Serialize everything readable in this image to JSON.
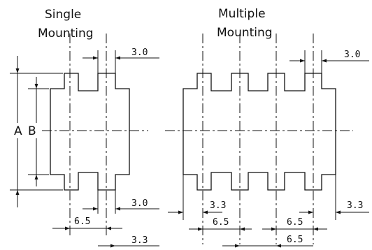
{
  "single": {
    "title_line1": "Single",
    "title_line2": "Mounting",
    "label_a": "A",
    "label_b": "B",
    "dim_top_gap": "3.0",
    "dim_bottom_gap": "3.0",
    "dim_pitch": "6.5",
    "dim_offset": "3.3"
  },
  "multiple": {
    "title_line1": "Multiple",
    "title_line2": "Mounting",
    "dim_top_gap": "3.0",
    "dim_offset_left": "3.3",
    "dim_offset_right": "3.3",
    "dim_pitch_1": "6.5",
    "dim_pitch_2": "6.5",
    "dim_pitch_3": "6.5"
  }
}
